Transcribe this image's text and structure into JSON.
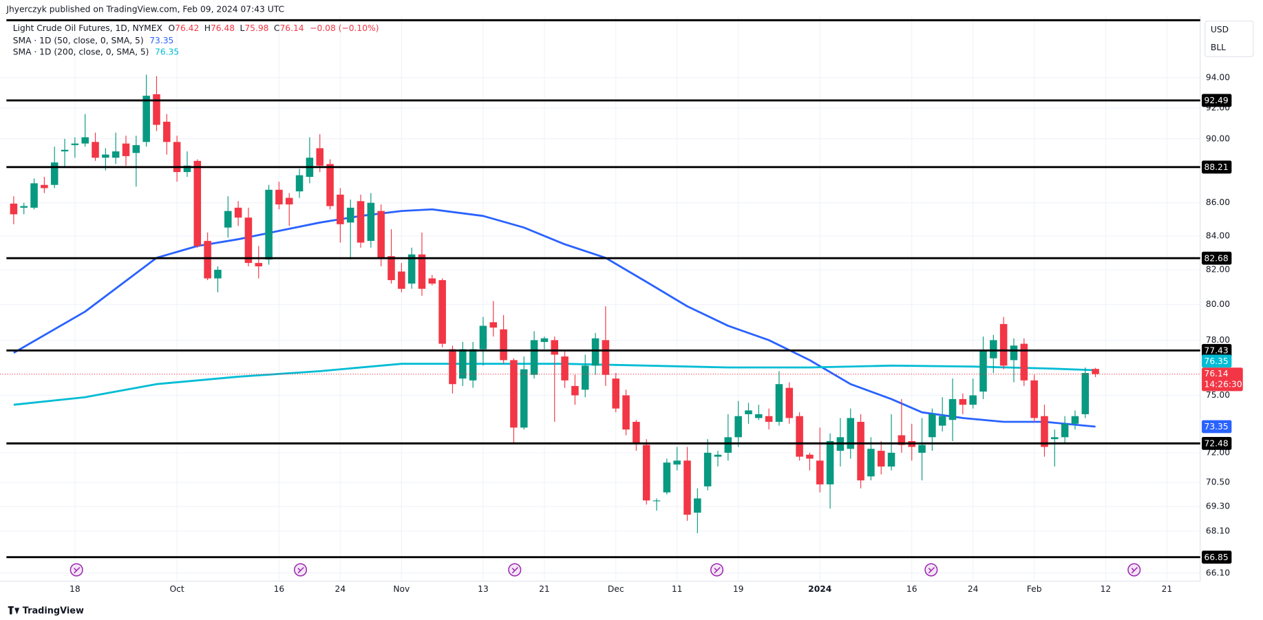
{
  "header": "Jhyerczyk published on TradingView.com, Feb 09, 2024 07:43 UTC",
  "footer": "TradingView",
  "chart_data": {
    "type": "candlestick",
    "title": "Light Crude Oil Futures, 1D, NYMEX",
    "ohlc_labels": [
      "O",
      "H",
      "L",
      "C"
    ],
    "change": "−0.08 (−0.10%)",
    "currency": "USD",
    "unit": "BLL",
    "countdown": "14:26:30",
    "up_color": "#089981",
    "down_color": "#f23645",
    "log_scale": true,
    "grid": true,
    "ylim": [
      65.72,
      97.86
    ],
    "yticks": [
      {
        "value": 94,
        "label": "94.00"
      },
      {
        "value": 92,
        "label": "92.00"
      },
      {
        "value": 90,
        "label": "90.00"
      },
      {
        "value": 86,
        "label": "86.00"
      },
      {
        "value": 84,
        "label": "84.00"
      },
      {
        "value": 82,
        "label": "82.00"
      },
      {
        "value": 80,
        "label": "80.00"
      },
      {
        "value": 78,
        "label": "78.00"
      },
      {
        "value": 75,
        "label": "75.00"
      },
      {
        "value": 72,
        "label": "72.00"
      },
      {
        "value": 70.5,
        "label": "70.50"
      },
      {
        "value": 69.3,
        "label": "69.30"
      },
      {
        "value": 68.1,
        "label": "68.10"
      },
      {
        "value": 66.1,
        "label": "66.10"
      }
    ],
    "levels": [
      92.49,
      88.21,
      82.68,
      77.43,
      72.48,
      66.85
    ],
    "level_color": "#000000",
    "categories": [
      null,
      null,
      null,
      null,
      null,
      null,
      "18",
      null,
      null,
      null,
      null,
      null,
      null,
      null,
      null,
      null,
      "Oct",
      null,
      null,
      null,
      null,
      null,
      null,
      null,
      null,
      null,
      "16",
      null,
      null,
      null,
      null,
      null,
      "24",
      null,
      null,
      null,
      null,
      null,
      "Nov",
      null,
      null,
      null,
      null,
      null,
      null,
      null,
      "13",
      null,
      null,
      null,
      null,
      null,
      "21",
      null,
      null,
      null,
      null,
      null,
      null,
      "Dec",
      null,
      null,
      null,
      null,
      null,
      "11",
      null,
      null,
      null,
      null,
      null,
      "19",
      null,
      null,
      null,
      null,
      null,
      null,
      null,
      "2024",
      null,
      null,
      null,
      null,
      null,
      null,
      null,
      null,
      "16",
      null,
      null,
      null,
      null,
      null,
      "24",
      null,
      null,
      null,
      null,
      null,
      "Feb",
      null,
      null,
      null,
      null,
      null,
      null,
      "12",
      null,
      null,
      null,
      null,
      null,
      "21"
    ],
    "open": [
      85.95,
      85.7,
      85.7,
      87.1,
      87.1,
      89.2,
      89.6,
      89.7,
      89.8,
      88.8,
      88.8,
      89.7,
      89.1,
      89.8,
      92.9,
      91.1,
      89.8,
      87.9,
      88.6,
      83.7,
      81.5,
      84.5,
      85.7,
      85.1,
      82.4,
      82.6,
      86.8,
      86.3,
      86.7,
      87.6,
      89.4,
      88.4,
      86.5,
      84.8,
      86.1,
      83.7,
      85.5,
      82.8,
      81.9,
      81.2,
      82.9,
      81.5,
      81.4,
      77.5,
      75.9,
      75.8,
      77.5,
      79.0,
      78.6,
      76.9,
      73.3,
      76.1,
      77.9,
      78.0,
      77.1,
      75.5,
      75.3,
      76.6,
      78.0,
      75.9,
      75.0,
      73.6,
      72.4,
      69.6,
      70.0,
      71.4,
      71.6,
      69.0,
      70.3,
      71.8,
      72.0,
      72.8,
      74.0,
      73.8,
      73.9,
      73.6,
      75.4,
      73.9,
      71.9,
      71.6,
      70.4,
      72.1,
      72.2,
      73.6,
      70.8,
      72.1,
      71.3,
      72.9,
      72.6,
      72.0,
      72.8,
      73.4,
      73.7,
      74.8,
      74.5,
      75.2,
      77.0,
      78.9,
      76.9,
      77.8,
      75.8,
      73.9,
      72.7,
      72.8,
      73.5,
      74.0,
      76.42,
      null,
      null,
      null,
      null,
      null,
      null,
      null
    ],
    "high": [
      86.4,
      86.0,
      87.5,
      87.6,
      89.5,
      90.0,
      90.1,
      91.6,
      90.4,
      89.4,
      90.4,
      90.2,
      90.2,
      94.2,
      94.1,
      91.6,
      90.2,
      89.2,
      88.7,
      84.2,
      82.2,
      86.4,
      86.1,
      85.7,
      83.4,
      87.1,
      87.3,
      86.6,
      88.1,
      90.1,
      90.3,
      88.7,
      86.9,
      86.2,
      86.5,
      86.6,
      85.9,
      84.4,
      82.4,
      83.3,
      84.2,
      81.7,
      81.5,
      77.7,
      77.9,
      77.9,
      79.3,
      80.2,
      79.4,
      77.0,
      77.1,
      78.5,
      78.2,
      78.2,
      77.4,
      76.1,
      77.2,
      78.4,
      79.9,
      76.2,
      75.3,
      73.7,
      72.7,
      69.7,
      71.7,
      72.3,
      72.3,
      70.2,
      72.7,
      72.1,
      74.0,
      74.7,
      74.6,
      74.5,
      74.3,
      76.3,
      75.7,
      74.1,
      72.0,
      73.3,
      73.0,
      73.8,
      74.3,
      74.0,
      72.8,
      72.6,
      74.0,
      74.8,
      73.5,
      73.8,
      74.3,
      74.9,
      75.9,
      75.1,
      75.9,
      78.2,
      78.3,
      79.3,
      78.1,
      78.1,
      76.1,
      74.5,
      73.2,
      73.9,
      74.2,
      76.5,
      76.48,
      null,
      null,
      null,
      null,
      null,
      null,
      null
    ],
    "low": [
      84.7,
      85.3,
      85.6,
      86.6,
      86.9,
      88.2,
      88.8,
      89.5,
      88.6,
      88.0,
      88.4,
      88.3,
      87.0,
      89.5,
      90.5,
      89.0,
      87.3,
      87.6,
      83.3,
      81.4,
      80.7,
      83.9,
      84.6,
      82.2,
      81.5,
      82.3,
      85.6,
      84.6,
      86.3,
      87.2,
      87.9,
      85.6,
      83.6,
      82.6,
      83.3,
      83.3,
      82.2,
      81.2,
      80.7,
      80.9,
      80.5,
      81.1,
      77.6,
      75.1,
      75.5,
      75.4,
      76.6,
      78.2,
      76.7,
      72.5,
      73.2,
      75.9,
      77.5,
      73.6,
      75.4,
      74.5,
      74.9,
      76.1,
      75.5,
      74.1,
      72.9,
      72.1,
      69.4,
      69.1,
      69.9,
      71.1,
      68.6,
      68.0,
      70.1,
      71.3,
      71.6,
      72.3,
      73.5,
      73.7,
      73.2,
      73.4,
      73.5,
      71.6,
      71.1,
      70.0,
      69.2,
      71.3,
      71.7,
      70.2,
      70.6,
      70.9,
      71.1,
      72.0,
      71.6,
      70.6,
      72.1,
      73.1,
      72.6,
      74.0,
      74.3,
      74.8,
      76.2,
      76.4,
      75.7,
      75.5,
      73.6,
      71.8,
      71.3,
      72.5,
      73.2,
      73.8,
      75.98,
      null,
      null,
      null,
      null,
      null,
      null,
      null
    ],
    "close": [
      85.3,
      85.8,
      87.2,
      86.9,
      88.5,
      89.3,
      89.7,
      90.1,
      88.8,
      89.0,
      89.2,
      88.9,
      89.6,
      92.8,
      90.9,
      89.8,
      87.9,
      88.3,
      83.4,
      81.5,
      82.0,
      85.5,
      85.1,
      82.4,
      82.2,
      86.8,
      85.9,
      85.9,
      87.7,
      88.8,
      88.3,
      85.8,
      84.7,
      85.7,
      83.6,
      86.0,
      82.7,
      81.4,
      80.9,
      82.9,
      80.9,
      81.2,
      77.8,
      75.6,
      77.5,
      77.5,
      78.8,
      78.7,
      76.9,
      73.3,
      76.4,
      78.0,
      78.1,
      77.2,
      75.8,
      75.0,
      76.6,
      78.1,
      76.1,
      74.3,
      73.2,
      72.5,
      69.6,
      69.6,
      71.5,
      71.6,
      68.9,
      69.7,
      72.0,
      71.9,
      72.8,
      73.9,
      74.2,
      74.0,
      73.6,
      75.6,
      73.8,
      71.8,
      71.7,
      70.4,
      72.6,
      72.8,
      73.8,
      70.6,
      72.2,
      71.3,
      72.0,
      72.4,
      72.3,
      72.4,
      74.0,
      73.9,
      74.8,
      74.5,
      75.0,
      77.4,
      78.0,
      76.6,
      77.7,
      75.8,
      73.8,
      72.3,
      72.8,
      73.5,
      73.9,
      76.2,
      76.14,
      null,
      null,
      null,
      null,
      null,
      null,
      null
    ],
    "series": [
      {
        "name": "SMA · 1D (50, close, 0, SMA, 5)",
        "color": "#2962ff",
        "x": [
          0,
          7,
          14,
          18,
          22,
          26,
          30,
          34,
          38,
          41,
          46,
          50,
          54,
          58,
          62,
          66,
          70,
          74,
          78,
          82,
          86,
          89,
          93,
          97,
          101,
          106
        ],
        "values": [
          77.3,
          79.6,
          82.7,
          83.4,
          83.8,
          84.3,
          84.8,
          85.2,
          85.5,
          85.6,
          85.2,
          84.5,
          83.5,
          82.7,
          81.3,
          79.9,
          78.8,
          78.0,
          76.9,
          75.6,
          74.8,
          74.1,
          73.8,
          73.6,
          73.6,
          73.35
        ]
      },
      {
        "name": "SMA · 1D (200, close, 0, SMA, 5)",
        "color": "#00bcd4",
        "x": [
          0,
          7,
          14,
          22,
          30,
          38,
          46,
          54,
          62,
          70,
          78,
          86,
          94,
          101,
          106
        ],
        "values": [
          74.5,
          74.9,
          75.6,
          76.0,
          76.3,
          76.7,
          76.7,
          76.7,
          76.6,
          76.5,
          76.5,
          76.6,
          76.55,
          76.45,
          76.35
        ]
      }
    ]
  }
}
